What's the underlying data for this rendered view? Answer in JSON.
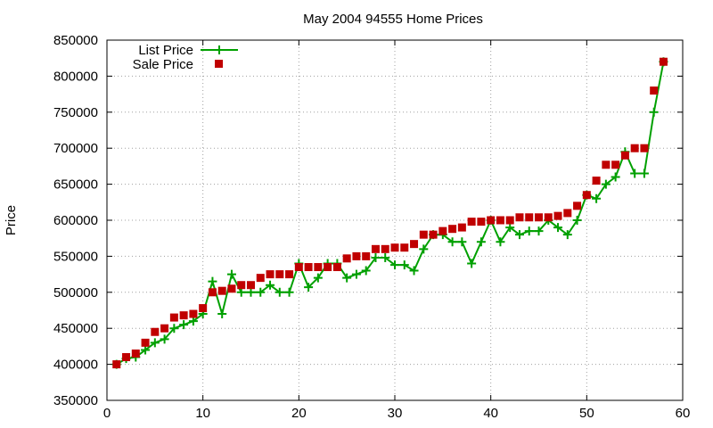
{
  "chart_data": {
    "type": "line",
    "title": "May 2004 94555 Home Prices",
    "xlabel": "",
    "ylabel": "Price",
    "xlim": [
      0,
      60
    ],
    "ylim": [
      350000,
      850000
    ],
    "xticks": [
      0,
      10,
      20,
      30,
      40,
      50,
      60
    ],
    "yticks": [
      350000,
      400000,
      450000,
      500000,
      550000,
      600000,
      650000,
      700000,
      750000,
      800000,
      850000
    ],
    "grid": true,
    "legend_position": "top-left",
    "x": [
      1,
      2,
      3,
      4,
      5,
      6,
      7,
      8,
      9,
      10,
      11,
      12,
      13,
      14,
      15,
      16,
      17,
      18,
      19,
      20,
      21,
      22,
      23,
      24,
      25,
      26,
      27,
      28,
      29,
      30,
      31,
      32,
      33,
      34,
      35,
      36,
      37,
      38,
      39,
      40,
      41,
      42,
      43,
      44,
      45,
      46,
      47,
      48,
      49,
      50,
      51,
      52,
      53,
      54,
      55,
      56,
      57,
      58
    ],
    "series": [
      {
        "name": "List Price",
        "style": "line-with-plus",
        "color": "#00a000",
        "values": [
          400000,
          408000,
          410000,
          420000,
          430000,
          435000,
          450000,
          455000,
          460000,
          470000,
          515000,
          470000,
          525000,
          500000,
          500000,
          500000,
          510000,
          500000,
          500000,
          540000,
          507000,
          520000,
          540000,
          540000,
          520000,
          525000,
          530000,
          548000,
          548000,
          538000,
          538000,
          530000,
          560000,
          580000,
          580000,
          570000,
          570000,
          540000,
          570000,
          600000,
          570000,
          590000,
          580000,
          585000,
          585000,
          600000,
          590000,
          580000,
          600000,
          635000,
          630000,
          650000,
          660000,
          695000,
          665000,
          665000,
          750000,
          820000
        ]
      },
      {
        "name": "Sale Price",
        "style": "square-markers",
        "color": "#c00000",
        "values": [
          400000,
          410000,
          415000,
          430000,
          445000,
          450000,
          465000,
          468000,
          470000,
          478000,
          500000,
          502000,
          505000,
          510000,
          510000,
          520000,
          525000,
          525000,
          525000,
          535000,
          535000,
          535000,
          535000,
          535000,
          547000,
          550000,
          550000,
          560000,
          560000,
          562000,
          562000,
          567000,
          580000,
          580000,
          585000,
          588000,
          590000,
          598000,
          598000,
          600000,
          600000,
          600000,
          604000,
          604000,
          604000,
          604000,
          606000,
          610000,
          620000,
          635000,
          655000,
          677000,
          677000,
          690000,
          700000,
          700000,
          780000,
          820000
        ]
      }
    ]
  }
}
